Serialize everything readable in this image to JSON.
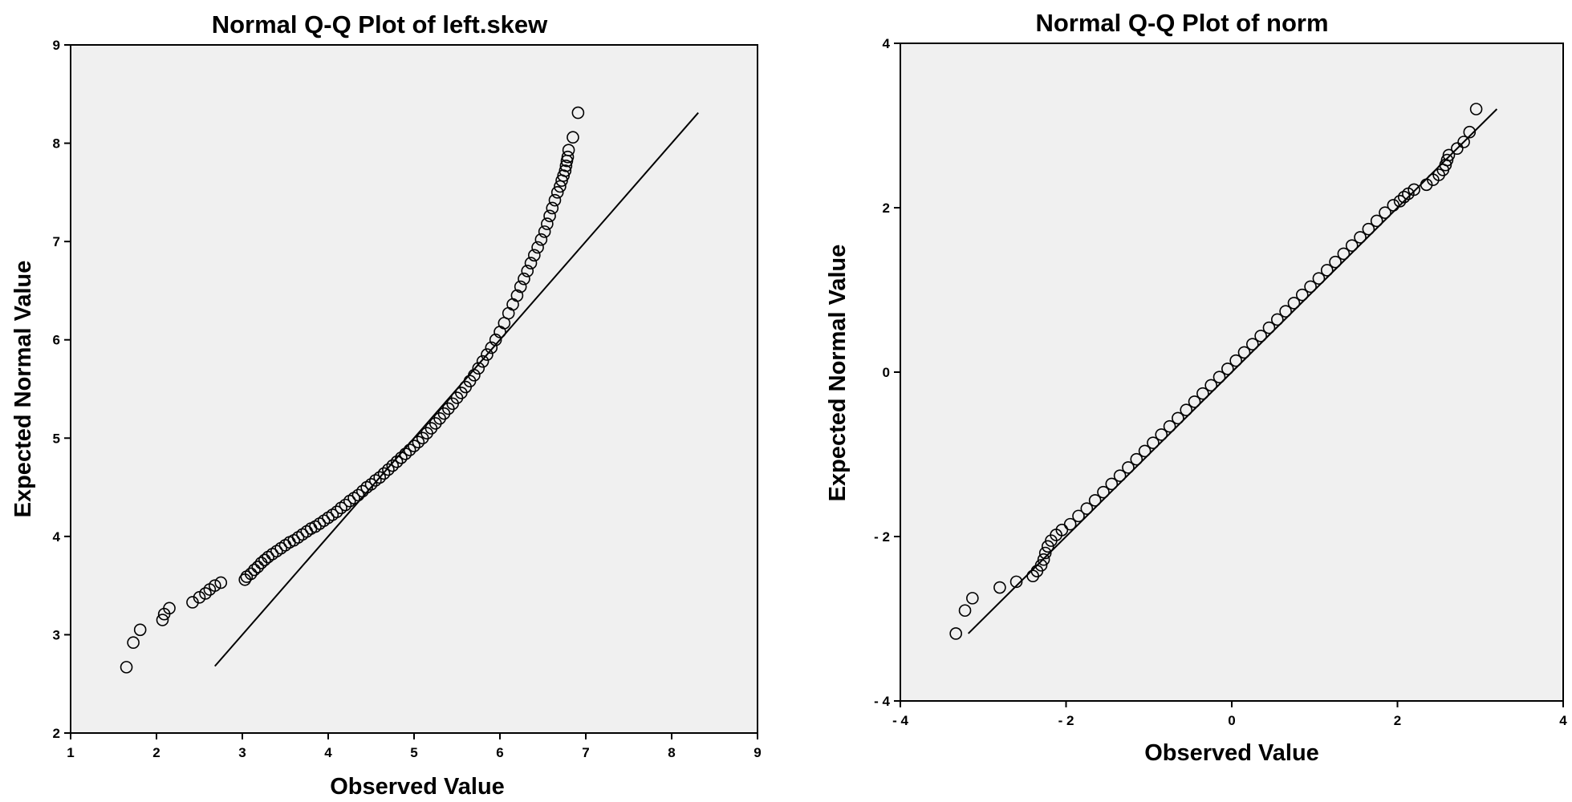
{
  "chart_data": [
    {
      "type": "scatter",
      "title": "Normal Q-Q Plot of left.skew",
      "xlabel": "Observed Value",
      "ylabel": "Expected Normal Value",
      "xlim": [
        1,
        9
      ],
      "ylim": [
        2,
        9
      ],
      "xticks": [
        1,
        2,
        3,
        4,
        5,
        6,
        7,
        8,
        9
      ],
      "yticks": [
        2,
        3,
        4,
        5,
        6,
        7,
        8,
        9
      ],
      "xtick_labels": [
        "1",
        "2",
        "3",
        "4",
        "5",
        "6",
        "7",
        "8",
        "9"
      ],
      "ytick_labels": [
        "2",
        "3",
        "4",
        "5",
        "6",
        "7",
        "8",
        "9"
      ],
      "grid": false,
      "plot_background": "#f0f0f0",
      "reference_line": {
        "x": [
          2.68,
          8.31
        ],
        "y": [
          2.68,
          8.31
        ]
      },
      "series": [
        {
          "marker": "open-circle",
          "x": [
            1.65,
            1.73,
            1.81,
            2.07,
            2.09,
            2.15,
            2.42,
            2.5,
            2.57,
            2.62,
            2.68,
            2.75,
            3.03,
            3.05,
            3.1,
            3.14,
            3.18,
            3.22,
            3.26,
            3.3,
            3.35,
            3.4,
            3.45,
            3.5,
            3.55,
            3.6,
            3.65,
            3.7,
            3.75,
            3.8,
            3.85,
            3.9,
            3.95,
            4.0,
            4.05,
            4.1,
            4.15,
            4.2,
            4.25,
            4.3,
            4.35,
            4.4,
            4.45,
            4.5,
            4.55,
            4.6,
            4.65,
            4.7,
            4.75,
            4.8,
            4.85,
            4.9,
            4.95,
            5.0,
            5.05,
            5.1,
            5.15,
            5.2,
            5.25,
            5.3,
            5.35,
            5.4,
            5.45,
            5.5,
            5.55,
            5.6,
            5.65,
            5.7,
            5.75,
            5.8,
            5.85,
            5.9,
            5.95,
            6.0,
            6.05,
            6.1,
            6.15,
            6.2,
            6.24,
            6.28,
            6.32,
            6.36,
            6.4,
            6.44,
            6.48,
            6.52,
            6.55,
            6.58,
            6.61,
            6.64,
            6.67,
            6.7,
            6.72,
            6.74,
            6.76,
            6.77,
            6.78,
            6.79,
            6.8,
            6.85,
            6.91
          ],
          "y": [
            2.67,
            2.92,
            3.05,
            3.15,
            3.21,
            3.27,
            3.33,
            3.38,
            3.42,
            3.46,
            3.5,
            3.53,
            3.56,
            3.59,
            3.62,
            3.66,
            3.69,
            3.73,
            3.76,
            3.79,
            3.82,
            3.85,
            3.88,
            3.91,
            3.94,
            3.96,
            3.99,
            4.02,
            4.05,
            4.08,
            4.1,
            4.13,
            4.16,
            4.19,
            4.22,
            4.25,
            4.29,
            4.32,
            4.36,
            4.39,
            4.42,
            4.46,
            4.5,
            4.53,
            4.57,
            4.6,
            4.64,
            4.68,
            4.72,
            4.76,
            4.8,
            4.84,
            4.88,
            4.92,
            4.96,
            5.0,
            5.05,
            5.1,
            5.15,
            5.2,
            5.25,
            5.3,
            5.35,
            5.41,
            5.46,
            5.52,
            5.58,
            5.64,
            5.71,
            5.78,
            5.85,
            5.92,
            6.0,
            6.08,
            6.17,
            6.27,
            6.36,
            6.45,
            6.54,
            6.62,
            6.7,
            6.78,
            6.86,
            6.94,
            7.02,
            7.1,
            7.18,
            7.26,
            7.34,
            7.42,
            7.5,
            7.56,
            7.62,
            7.67,
            7.72,
            7.77,
            7.82,
            7.86,
            7.93,
            8.06,
            8.31
          ]
        }
      ]
    },
    {
      "type": "scatter",
      "title": "Normal Q-Q Plot of norm",
      "xlabel": "Observed Value",
      "ylabel": "Expected Normal Value",
      "xlim": [
        -4,
        4
      ],
      "ylim": [
        -4,
        4
      ],
      "xticks": [
        -4,
        -2,
        0,
        2,
        4
      ],
      "yticks": [
        -4,
        -2,
        0,
        2,
        4
      ],
      "xtick_labels": [
        "- 4",
        "- 2",
        "0",
        "2",
        "4"
      ],
      "ytick_labels": [
        "- 4",
        "- 2",
        "0",
        "2",
        "4"
      ],
      "grid": false,
      "plot_background": "#f0f0f0",
      "reference_line": {
        "x": [
          -3.18,
          3.2
        ],
        "y": [
          -3.18,
          3.2
        ]
      },
      "series": [
        {
          "marker": "open-circle",
          "x": [
            -3.33,
            -3.22,
            -3.13,
            -2.8,
            -2.6,
            -2.4,
            -2.35,
            -2.3,
            -2.27,
            -2.25,
            -2.22,
            -2.18,
            -2.12,
            -2.05,
            -1.95,
            -1.85,
            -1.75,
            -1.65,
            -1.55,
            -1.45,
            -1.35,
            -1.25,
            -1.15,
            -1.05,
            -0.95,
            -0.85,
            -0.75,
            -0.65,
            -0.55,
            -0.45,
            -0.35,
            -0.25,
            -0.15,
            -0.05,
            0.05,
            0.15,
            0.25,
            0.35,
            0.45,
            0.55,
            0.65,
            0.75,
            0.85,
            0.95,
            1.05,
            1.15,
            1.25,
            1.35,
            1.45,
            1.55,
            1.65,
            1.75,
            1.85,
            1.95,
            2.03,
            2.08,
            2.13,
            2.2,
            2.35,
            2.43,
            2.5,
            2.55,
            2.58,
            2.6,
            2.62,
            2.72,
            2.8,
            2.87,
            2.95
          ],
          "y": [
            -3.18,
            -2.9,
            -2.75,
            -2.62,
            -2.55,
            -2.48,
            -2.42,
            -2.35,
            -2.28,
            -2.2,
            -2.12,
            -2.05,
            -1.98,
            -1.92,
            -1.85,
            -1.75,
            -1.66,
            -1.56,
            -1.46,
            -1.36,
            -1.26,
            -1.16,
            -1.06,
            -0.96,
            -0.86,
            -0.76,
            -0.66,
            -0.56,
            -0.46,
            -0.36,
            -0.26,
            -0.16,
            -0.06,
            0.04,
            0.14,
            0.24,
            0.34,
            0.44,
            0.54,
            0.64,
            0.74,
            0.84,
            0.94,
            1.04,
            1.14,
            1.24,
            1.34,
            1.44,
            1.54,
            1.64,
            1.74,
            1.84,
            1.94,
            2.03,
            2.08,
            2.13,
            2.17,
            2.22,
            2.28,
            2.34,
            2.4,
            2.46,
            2.52,
            2.58,
            2.64,
            2.72,
            2.8,
            2.92,
            3.2
          ]
        }
      ]
    }
  ]
}
